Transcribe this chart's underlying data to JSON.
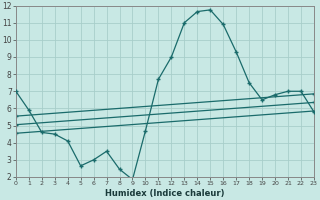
{
  "background_color": "#c8e8e4",
  "grid_color": "#a8ceca",
  "line_color": "#1a6b6b",
  "xlim": [
    0,
    23
  ],
  "ylim": [
    2,
    12
  ],
  "yticks": [
    2,
    3,
    4,
    5,
    6,
    7,
    8,
    9,
    10,
    11,
    12
  ],
  "xticks": [
    0,
    1,
    2,
    3,
    4,
    5,
    6,
    7,
    8,
    9,
    10,
    11,
    12,
    13,
    14,
    15,
    16,
    17,
    18,
    19,
    20,
    21,
    22,
    23
  ],
  "xlabel": "Humidex (Indice chaleur)",
  "main_x": [
    0,
    1,
    2,
    3,
    4,
    5,
    6,
    7,
    8,
    9,
    10,
    11,
    12,
    13,
    14,
    15,
    16,
    17,
    18,
    19,
    20,
    21,
    22,
    23
  ],
  "main_y": [
    7.0,
    5.9,
    4.6,
    4.5,
    4.1,
    2.65,
    3.0,
    3.5,
    2.45,
    1.85,
    4.7,
    7.7,
    9.0,
    11.0,
    11.65,
    11.75,
    10.9,
    9.3,
    7.5,
    6.5,
    6.8,
    7.0,
    7.0,
    5.8
  ],
  "line2_x": [
    0,
    23
  ],
  "line2_y": [
    4.55,
    5.85
  ],
  "line3_x": [
    0,
    23
  ],
  "line3_y": [
    5.05,
    6.35
  ],
  "line4_x": [
    0,
    23
  ],
  "line4_y": [
    5.55,
    6.85
  ],
  "marker_size": 2.5,
  "linewidth": 0.9,
  "xlabel_fontsize": 6.0,
  "tick_fontsize_x": 4.5,
  "tick_fontsize_y": 5.5
}
